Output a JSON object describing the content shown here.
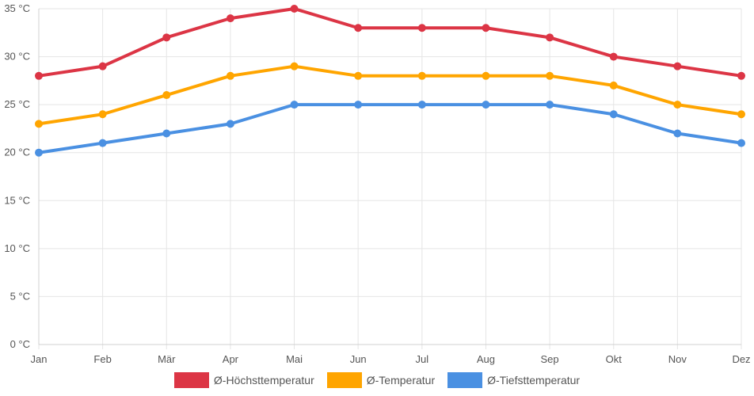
{
  "chart_data": {
    "type": "line",
    "categories": [
      "Jan",
      "Feb",
      "Mär",
      "Apr",
      "Mai",
      "Jun",
      "Jul",
      "Aug",
      "Sep",
      "Okt",
      "Nov",
      "Dez"
    ],
    "ylim": [
      0,
      35
    ],
    "yticks": [
      "0 °C",
      "5 °C",
      "10 °C",
      "15 °C",
      "20 °C",
      "25 °C",
      "30 °C",
      "35 °C"
    ],
    "ytick_values": [
      0,
      5,
      10,
      15,
      20,
      25,
      30,
      35
    ],
    "grid": true,
    "legend_position": "bottom-center",
    "series": [
      {
        "name": "Ø-Höchsttemperatur",
        "color": "#dc3545",
        "values": [
          28,
          29,
          32,
          34,
          35,
          33,
          33,
          33,
          32,
          30,
          29,
          28
        ]
      },
      {
        "name": "Ø-Temperatur",
        "color": "#ffa500",
        "values": [
          23,
          24,
          26,
          28,
          29,
          28,
          28,
          28,
          28,
          27,
          25,
          24
        ]
      },
      {
        "name": "Ø-Tiefsttemperatur",
        "color": "#4a90e2",
        "values": [
          20,
          21,
          22,
          23,
          25,
          25,
          25,
          25,
          25,
          24,
          22,
          21
        ]
      }
    ]
  }
}
